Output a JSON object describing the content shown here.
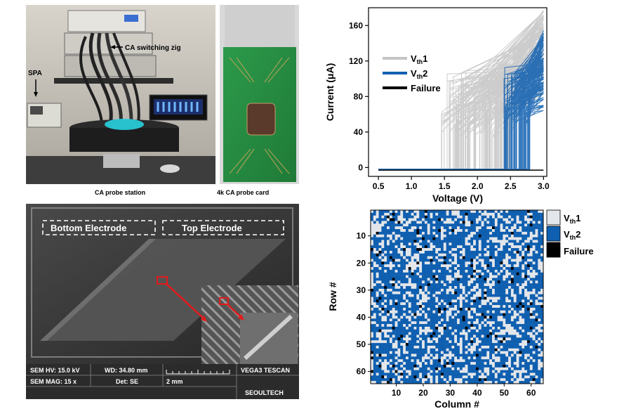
{
  "photo_panel": {
    "label_switching_zig": "CA switching zig",
    "label_spa": "SPA",
    "caption_station": "CA probe station",
    "caption_card": "4k CA probe card"
  },
  "sem_panel": {
    "label_bottom_electrode": "Bottom Electrode",
    "label_top_electrode": "Top Electrode",
    "info_hv": "SEM HV: 15.0 kV",
    "info_wd": "WD: 34.80 mm",
    "info_mag": "SEM MAG: 15 x",
    "info_det": "Det: SE",
    "info_scale": "2 mm",
    "info_brand": "VEGA3 TESCAN",
    "info_org": "SEOULTECH"
  },
  "chart_data": [
    {
      "type": "line",
      "title": "",
      "xlabel": "Voltage (V)",
      "ylabel": "Current (μA)",
      "xlim": [
        0.35,
        3.05
      ],
      "ylim": [
        -10,
        180
      ],
      "xticks": [
        0.5,
        1.0,
        1.5,
        2.0,
        2.5,
        3.0
      ],
      "xtick_labels": [
        "0.5",
        "1.0",
        "1.5",
        "2.0",
        "2.5",
        "3.0"
      ],
      "yticks": [
        0,
        40,
        80,
        120,
        160
      ],
      "ytick_labels": [
        "0",
        "40",
        "80",
        "120",
        "160"
      ],
      "legend_position": "upper-left",
      "series": [
        {
          "name": "Vth1",
          "label_main": "V",
          "label_sub": "th",
          "label_tail": "1",
          "color": "#c4c4c4",
          "switch_v_range": [
            1.45,
            2.5
          ],
          "current_at_switch_range": [
            40,
            110
          ],
          "current_at_3V_range": [
            80,
            178
          ]
        },
        {
          "name": "Vth2",
          "label_main": "V",
          "label_sub": "th",
          "label_tail": "2",
          "color": "#0f5fb0",
          "switch_v_range": [
            2.4,
            2.8
          ],
          "current_at_switch_range": [
            55,
            115
          ],
          "current_at_3V_range": [
            60,
            155
          ]
        },
        {
          "name": "Failure",
          "label_main": "Failure",
          "color": "#000000",
          "constant_current": -3
        }
      ]
    },
    {
      "type": "heatmap",
      "xlabel": "Column #",
      "ylabel": "Row #",
      "rows": 64,
      "cols": 64,
      "xticks": [
        10,
        20,
        30,
        40,
        50,
        60
      ],
      "xtick_labels": [
        "10",
        "20",
        "30",
        "40",
        "50",
        "60"
      ],
      "yticks": [
        10,
        20,
        30,
        40,
        50,
        60
      ],
      "ytick_labels": [
        "10",
        "20",
        "30",
        "40",
        "50",
        "60"
      ],
      "legend": [
        {
          "name": "Vth1",
          "label_main": "V",
          "label_sub": "th",
          "label_tail": "1",
          "color": "#e3e6ea"
        },
        {
          "name": "Vth2",
          "label_main": "V",
          "label_sub": "th",
          "label_tail": "2",
          "color": "#0f5fb0"
        },
        {
          "name": "Failure",
          "label_main": "Failure",
          "color": "#000000"
        }
      ],
      "approx_fraction": {
        "Vth1": 0.32,
        "Vth2": 0.64,
        "Failure": 0.04
      }
    }
  ]
}
